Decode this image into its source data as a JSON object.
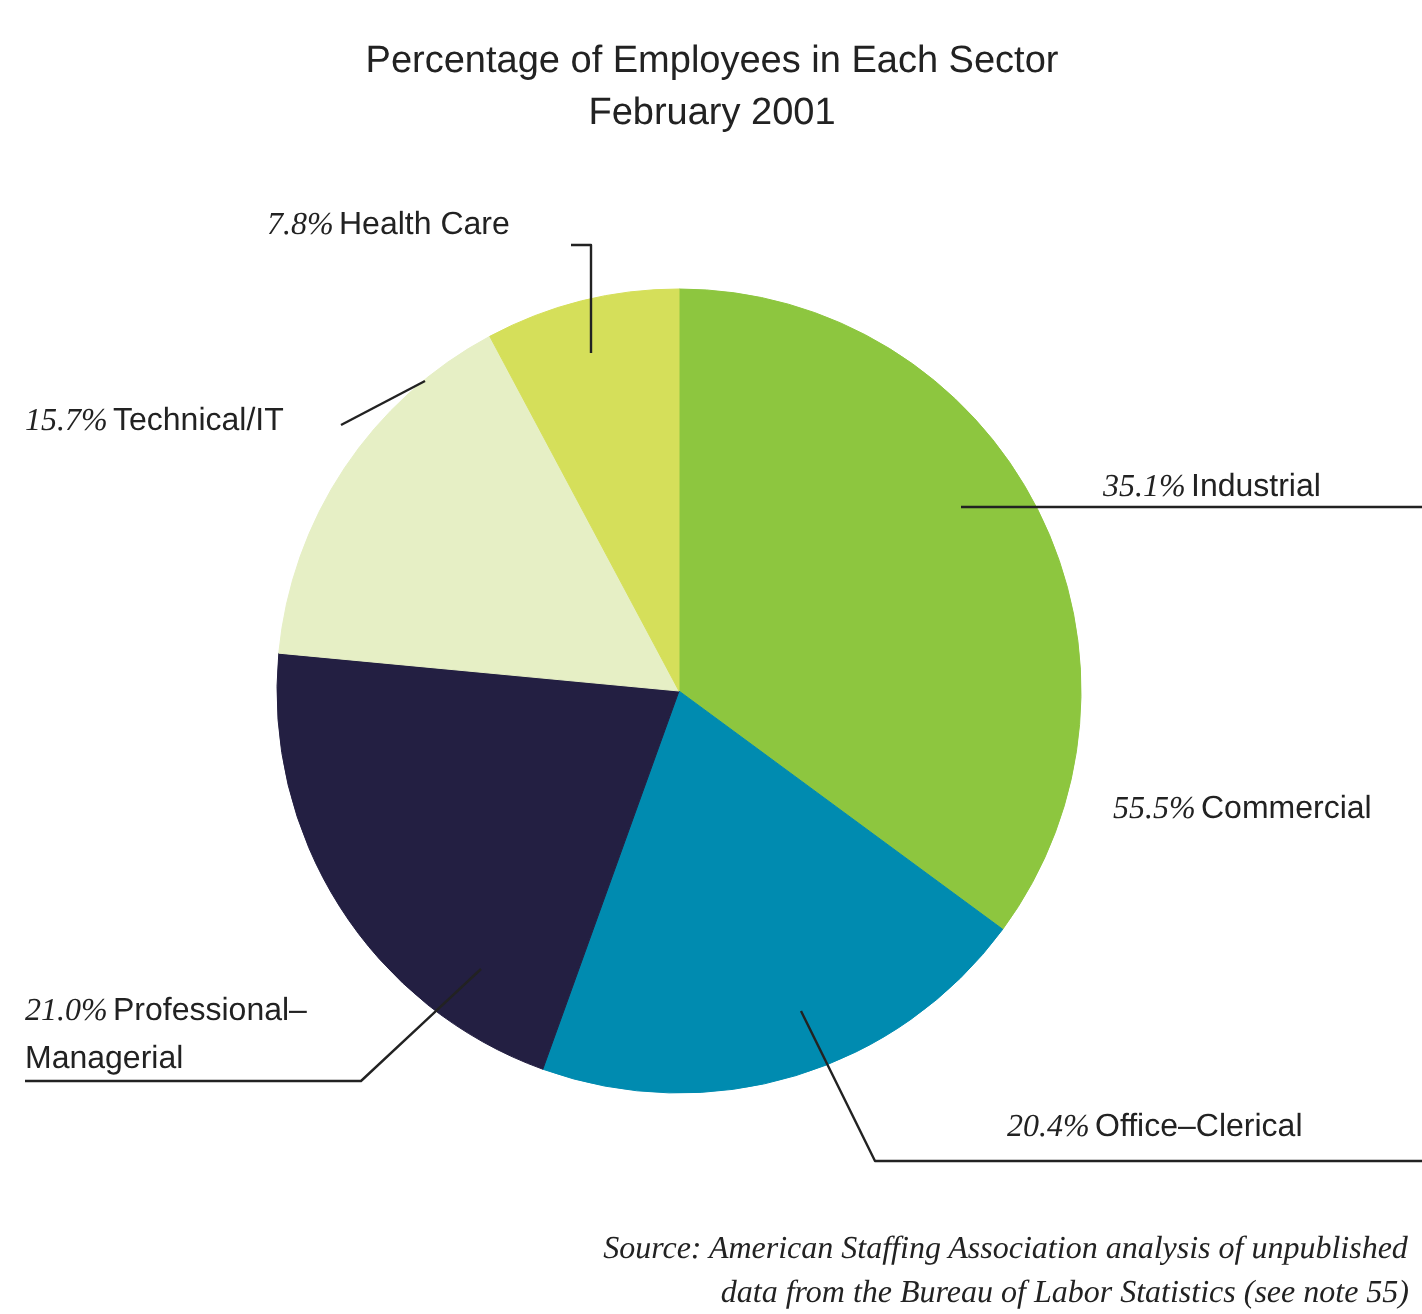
{
  "chart_data": {
    "type": "pie",
    "title": "Percentage of Employees in Each Sector",
    "subtitle": "February 2001",
    "categories": [
      "Industrial",
      "Office–Clerical",
      "Professional–Managerial",
      "Technical/IT",
      "Health Care"
    ],
    "values": [
      35.1,
      20.4,
      21.0,
      15.7,
      7.8
    ],
    "colors": [
      "#8dc63f",
      "#008bb0",
      "#231f42",
      "#e6efc5",
      "#d5df5a"
    ],
    "value_labels": [
      "35.1%",
      "20.4%",
      "21.0%",
      "15.7%",
      "7.8%"
    ],
    "annotations": [
      "55.5% Commercial",
      "Source: American Staffing Association analysis of unpublished data from the Bureau of Labor Statistics (see note 55)"
    ]
  }
}
